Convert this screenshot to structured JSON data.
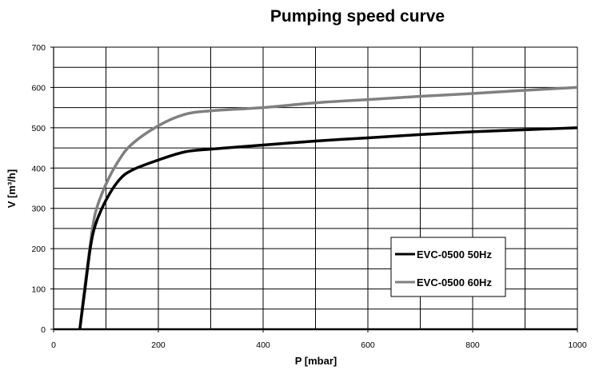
{
  "chart_data": {
    "type": "line",
    "title": "Pumping speed curve",
    "xlabel": "P [mbar]",
    "ylabel": "V [m³/h]",
    "xlim": [
      0,
      1000
    ],
    "ylim": [
      0,
      700
    ],
    "x_ticks": [
      0,
      200,
      400,
      600,
      800,
      1000
    ],
    "y_ticks": [
      0,
      100,
      200,
      300,
      400,
      500,
      600,
      700
    ],
    "x_grid_step": 100,
    "y_grid_step": 50,
    "grid": true,
    "legend_position": "lower-right",
    "series": [
      {
        "name": "EVC-0500 50Hz",
        "color": "#000000",
        "x": [
          50,
          60,
          70,
          80,
          100,
          125,
          150,
          200,
          250,
          300,
          400,
          500,
          600,
          700,
          800,
          900,
          1000
        ],
        "y": [
          0,
          100,
          200,
          260,
          320,
          370,
          395,
          420,
          440,
          447,
          457,
          467,
          475,
          483,
          490,
          495,
          500
        ]
      },
      {
        "name": "EVC-0500 60Hz",
        "color": "#808080",
        "x": [
          50,
          60,
          70,
          80,
          100,
          125,
          150,
          200,
          250,
          300,
          400,
          500,
          600,
          700,
          800,
          900,
          1000
        ],
        "y": [
          0,
          110,
          210,
          290,
          360,
          420,
          460,
          505,
          533,
          542,
          550,
          562,
          570,
          578,
          585,
          593,
          600
        ]
      }
    ]
  }
}
